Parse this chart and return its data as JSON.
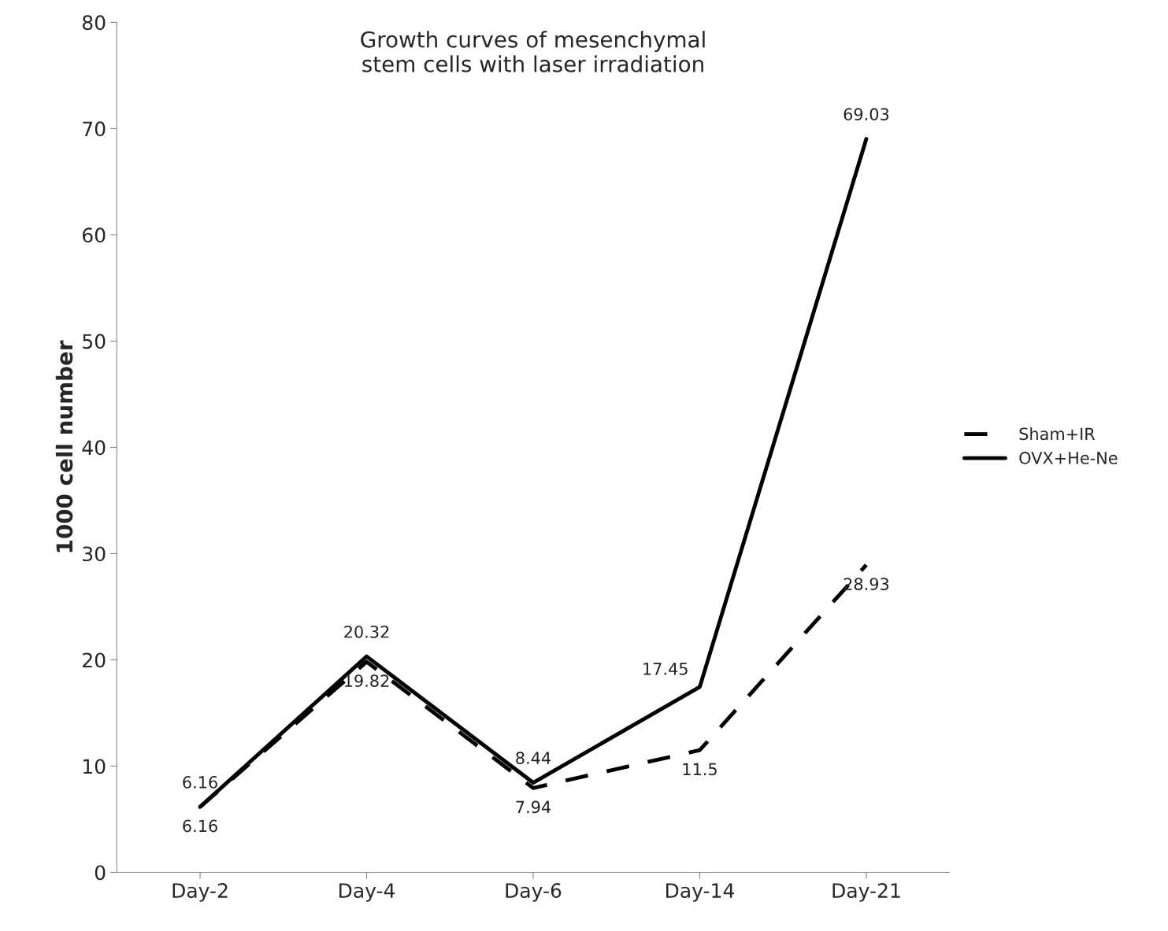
{
  "chart_data": {
    "type": "line",
    "title": "Growth curves of mesenchymal\nstem cells with laser irradiation",
    "ylabel": "1000 cell number",
    "categories": [
      "Day-2",
      "Day-4",
      "Day-6",
      "Day-14",
      "Day-21"
    ],
    "series": [
      {
        "name": "Sham+IR",
        "color": "#000000",
        "line_style": "dashed",
        "values": [
          6.16,
          19.82,
          7.94,
          11.5,
          28.93
        ]
      },
      {
        "name": "OVX+He-Ne",
        "color": "#000000",
        "line_style": "solid",
        "values": [
          6.16,
          20.32,
          8.44,
          17.45,
          69.03
        ]
      }
    ],
    "ylim": [
      0,
      80
    ],
    "yticks": [
      0,
      10,
      20,
      30,
      40,
      50,
      60,
      70,
      80
    ],
    "data_labels": true,
    "legend": "right",
    "grid": false,
    "marker": "none"
  }
}
